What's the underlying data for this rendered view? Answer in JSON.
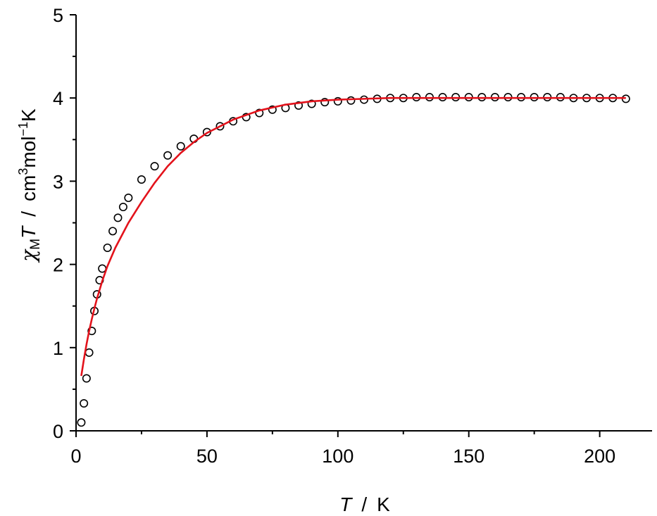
{
  "chart_data": {
    "type": "scatter",
    "xlabel": {
      "symbol": "T",
      "separator": "/",
      "unit": "K"
    },
    "ylabel": {
      "chi": "χ",
      "sub": "M",
      "T": "T",
      "separator": "/",
      "unit_cm": "cm",
      "sup3": "3",
      "unit_mol": "mol",
      "sup_minus1": "−1",
      "unit_K": "K"
    },
    "xlim": [
      0,
      220
    ],
    "ylim": [
      0,
      5
    ],
    "x_ticks": [
      "0",
      "50",
      "100",
      "150",
      "200"
    ],
    "y_ticks": [
      "0",
      "1",
      "2",
      "3",
      "4",
      "5"
    ],
    "x_tick_values": [
      0,
      50,
      100,
      150,
      200
    ],
    "y_tick_values": [
      0,
      1,
      2,
      3,
      4,
      5
    ],
    "x_minor_values": [
      25,
      75,
      125,
      175
    ],
    "y_minor_values": [
      0.5,
      1.5,
      2.5,
      3.5,
      4.5
    ],
    "series": [
      {
        "kind": "points",
        "marker": "open-circle",
        "color": "#000000",
        "x": [
          2,
          3,
          4,
          5,
          6,
          7,
          8,
          9,
          10,
          12,
          14,
          16,
          18,
          20,
          25,
          30,
          35,
          40,
          45,
          50,
          55,
          60,
          65,
          70,
          75,
          80,
          85,
          90,
          95,
          100,
          105,
          110,
          115,
          120,
          125,
          130,
          135,
          140,
          145,
          150,
          155,
          160,
          165,
          170,
          175,
          180,
          185,
          190,
          195,
          200,
          205,
          210
        ],
        "y": [
          0.1,
          0.33,
          0.63,
          0.94,
          1.2,
          1.44,
          1.64,
          1.81,
          1.95,
          2.2,
          2.4,
          2.56,
          2.69,
          2.8,
          3.02,
          3.18,
          3.31,
          3.42,
          3.51,
          3.59,
          3.66,
          3.72,
          3.77,
          3.82,
          3.86,
          3.88,
          3.91,
          3.93,
          3.95,
          3.96,
          3.97,
          3.98,
          3.99,
          4.0,
          4.0,
          4.01,
          4.01,
          4.01,
          4.01,
          4.01,
          4.01,
          4.01,
          4.01,
          4.01,
          4.01,
          4.01,
          4.01,
          4.0,
          4.0,
          4.0,
          4.0,
          3.99
        ]
      },
      {
        "kind": "line",
        "color": "#e3121b",
        "x": [
          2,
          3,
          4,
          5,
          6,
          7,
          8,
          10,
          12,
          15,
          20,
          25,
          30,
          35,
          40,
          45,
          50,
          60,
          70,
          80,
          90,
          100,
          110,
          120,
          140,
          160,
          180,
          200,
          210
        ],
        "y": [
          0.66,
          0.86,
          1.04,
          1.2,
          1.34,
          1.47,
          1.59,
          1.8,
          1.98,
          2.2,
          2.5,
          2.75,
          2.98,
          3.18,
          3.34,
          3.47,
          3.58,
          3.74,
          3.85,
          3.92,
          3.96,
          3.98,
          3.99,
          4.0,
          4.0,
          4.0,
          4.0,
          4.0,
          4.0
        ]
      }
    ]
  }
}
